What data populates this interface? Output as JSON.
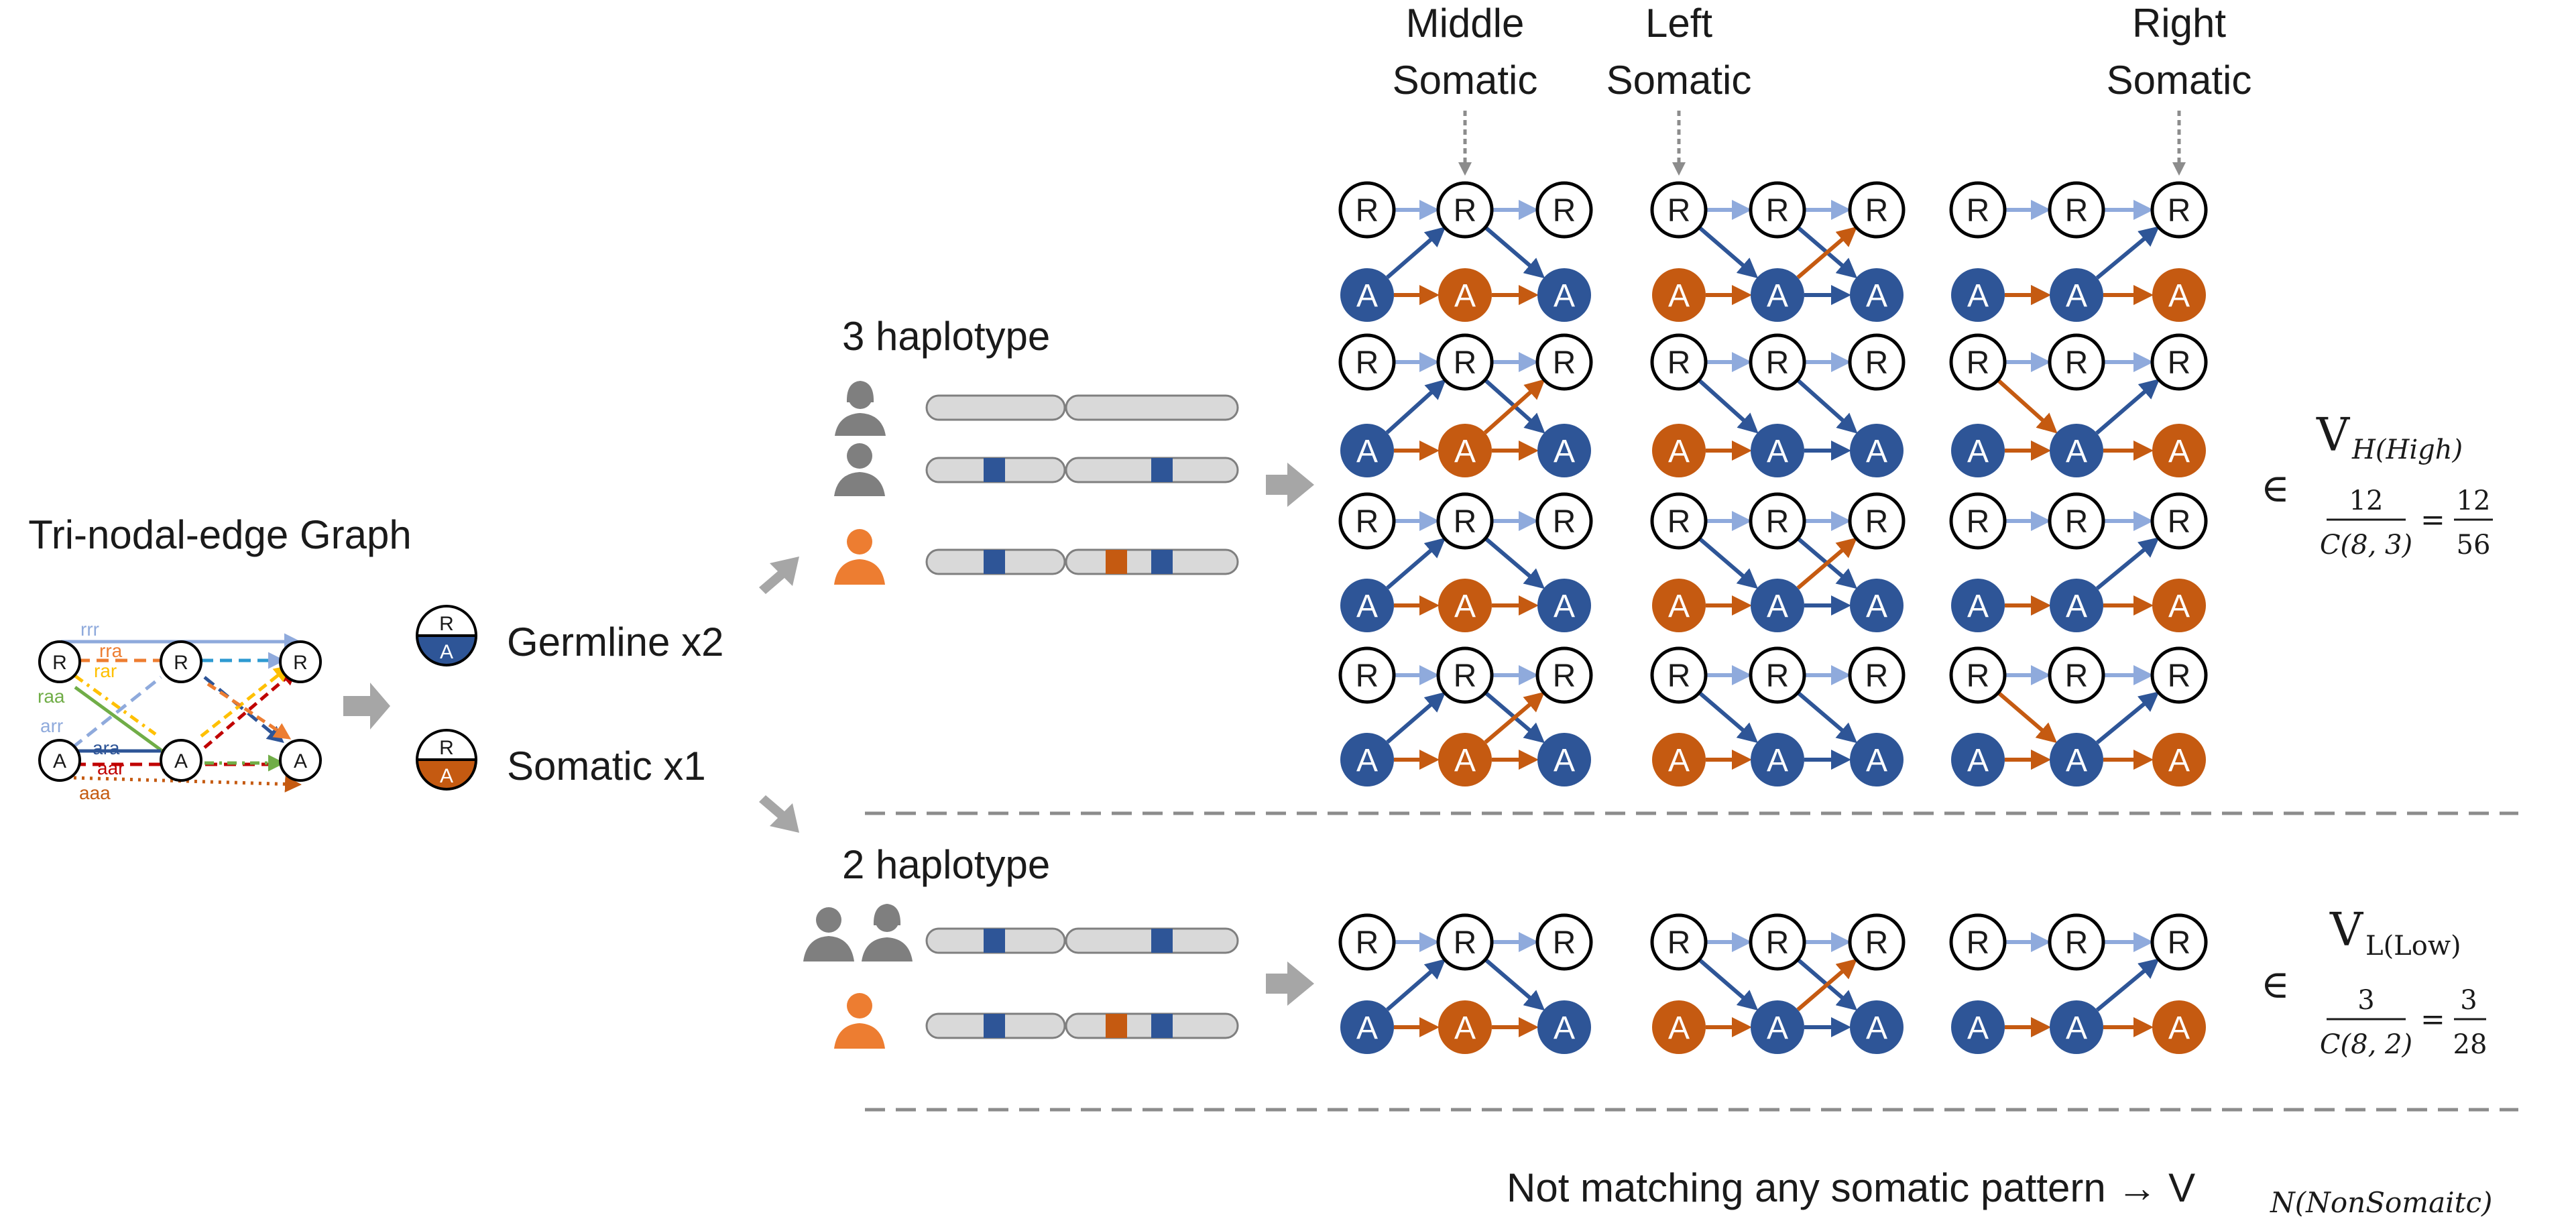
{
  "graph": {
    "title": "Tri-nodal-edge Graph",
    "node_r": "R",
    "node_a": "A",
    "edge_labels": [
      "rrr",
      "rra",
      "rar",
      "raa",
      "arr",
      "ara",
      "aar",
      "aaa"
    ]
  },
  "legend": {
    "germline_label": "Germline x2",
    "somatic_label": "Somatic x1",
    "badge_top": "R",
    "badge_bottom": "A"
  },
  "sections": {
    "three_hap": "3 haplotype",
    "two_hap": "2 haplotype"
  },
  "column_headers": [
    {
      "line1": "Middle",
      "line2": "Somatic"
    },
    {
      "line1": "Left",
      "line2": "Somatic"
    },
    {
      "line1": "Right",
      "line2": "Somatic"
    }
  ],
  "node_labels": {
    "ref": "R",
    "alt": "A"
  },
  "high": {
    "element_of": "∈",
    "v": "V",
    "sub": "H(High)",
    "frac_num": "12",
    "frac_den": "C(8, 3)",
    "eq": "=",
    "res_num": "12",
    "res_den": "56"
  },
  "low": {
    "element_of": "∈",
    "v": "V",
    "sub": "L(Low)",
    "frac_num": "3",
    "frac_den": "C(8, 2)",
    "eq": "=",
    "res_num": "3",
    "res_den": "28"
  },
  "footer": {
    "text": "Not matching any somatic pattern → V",
    "sub": "N(NonSomaitc)"
  },
  "colors": {
    "blue": "#2e5597",
    "light_blue": "#8faadc",
    "orange": "#c55a11",
    "light_orange": "#ed7d31",
    "gray": "#7f7f7f",
    "chrom_fill": "#d9d9d9",
    "green": "#70ad47",
    "yellow": "#ffc000",
    "red": "#c00000"
  }
}
